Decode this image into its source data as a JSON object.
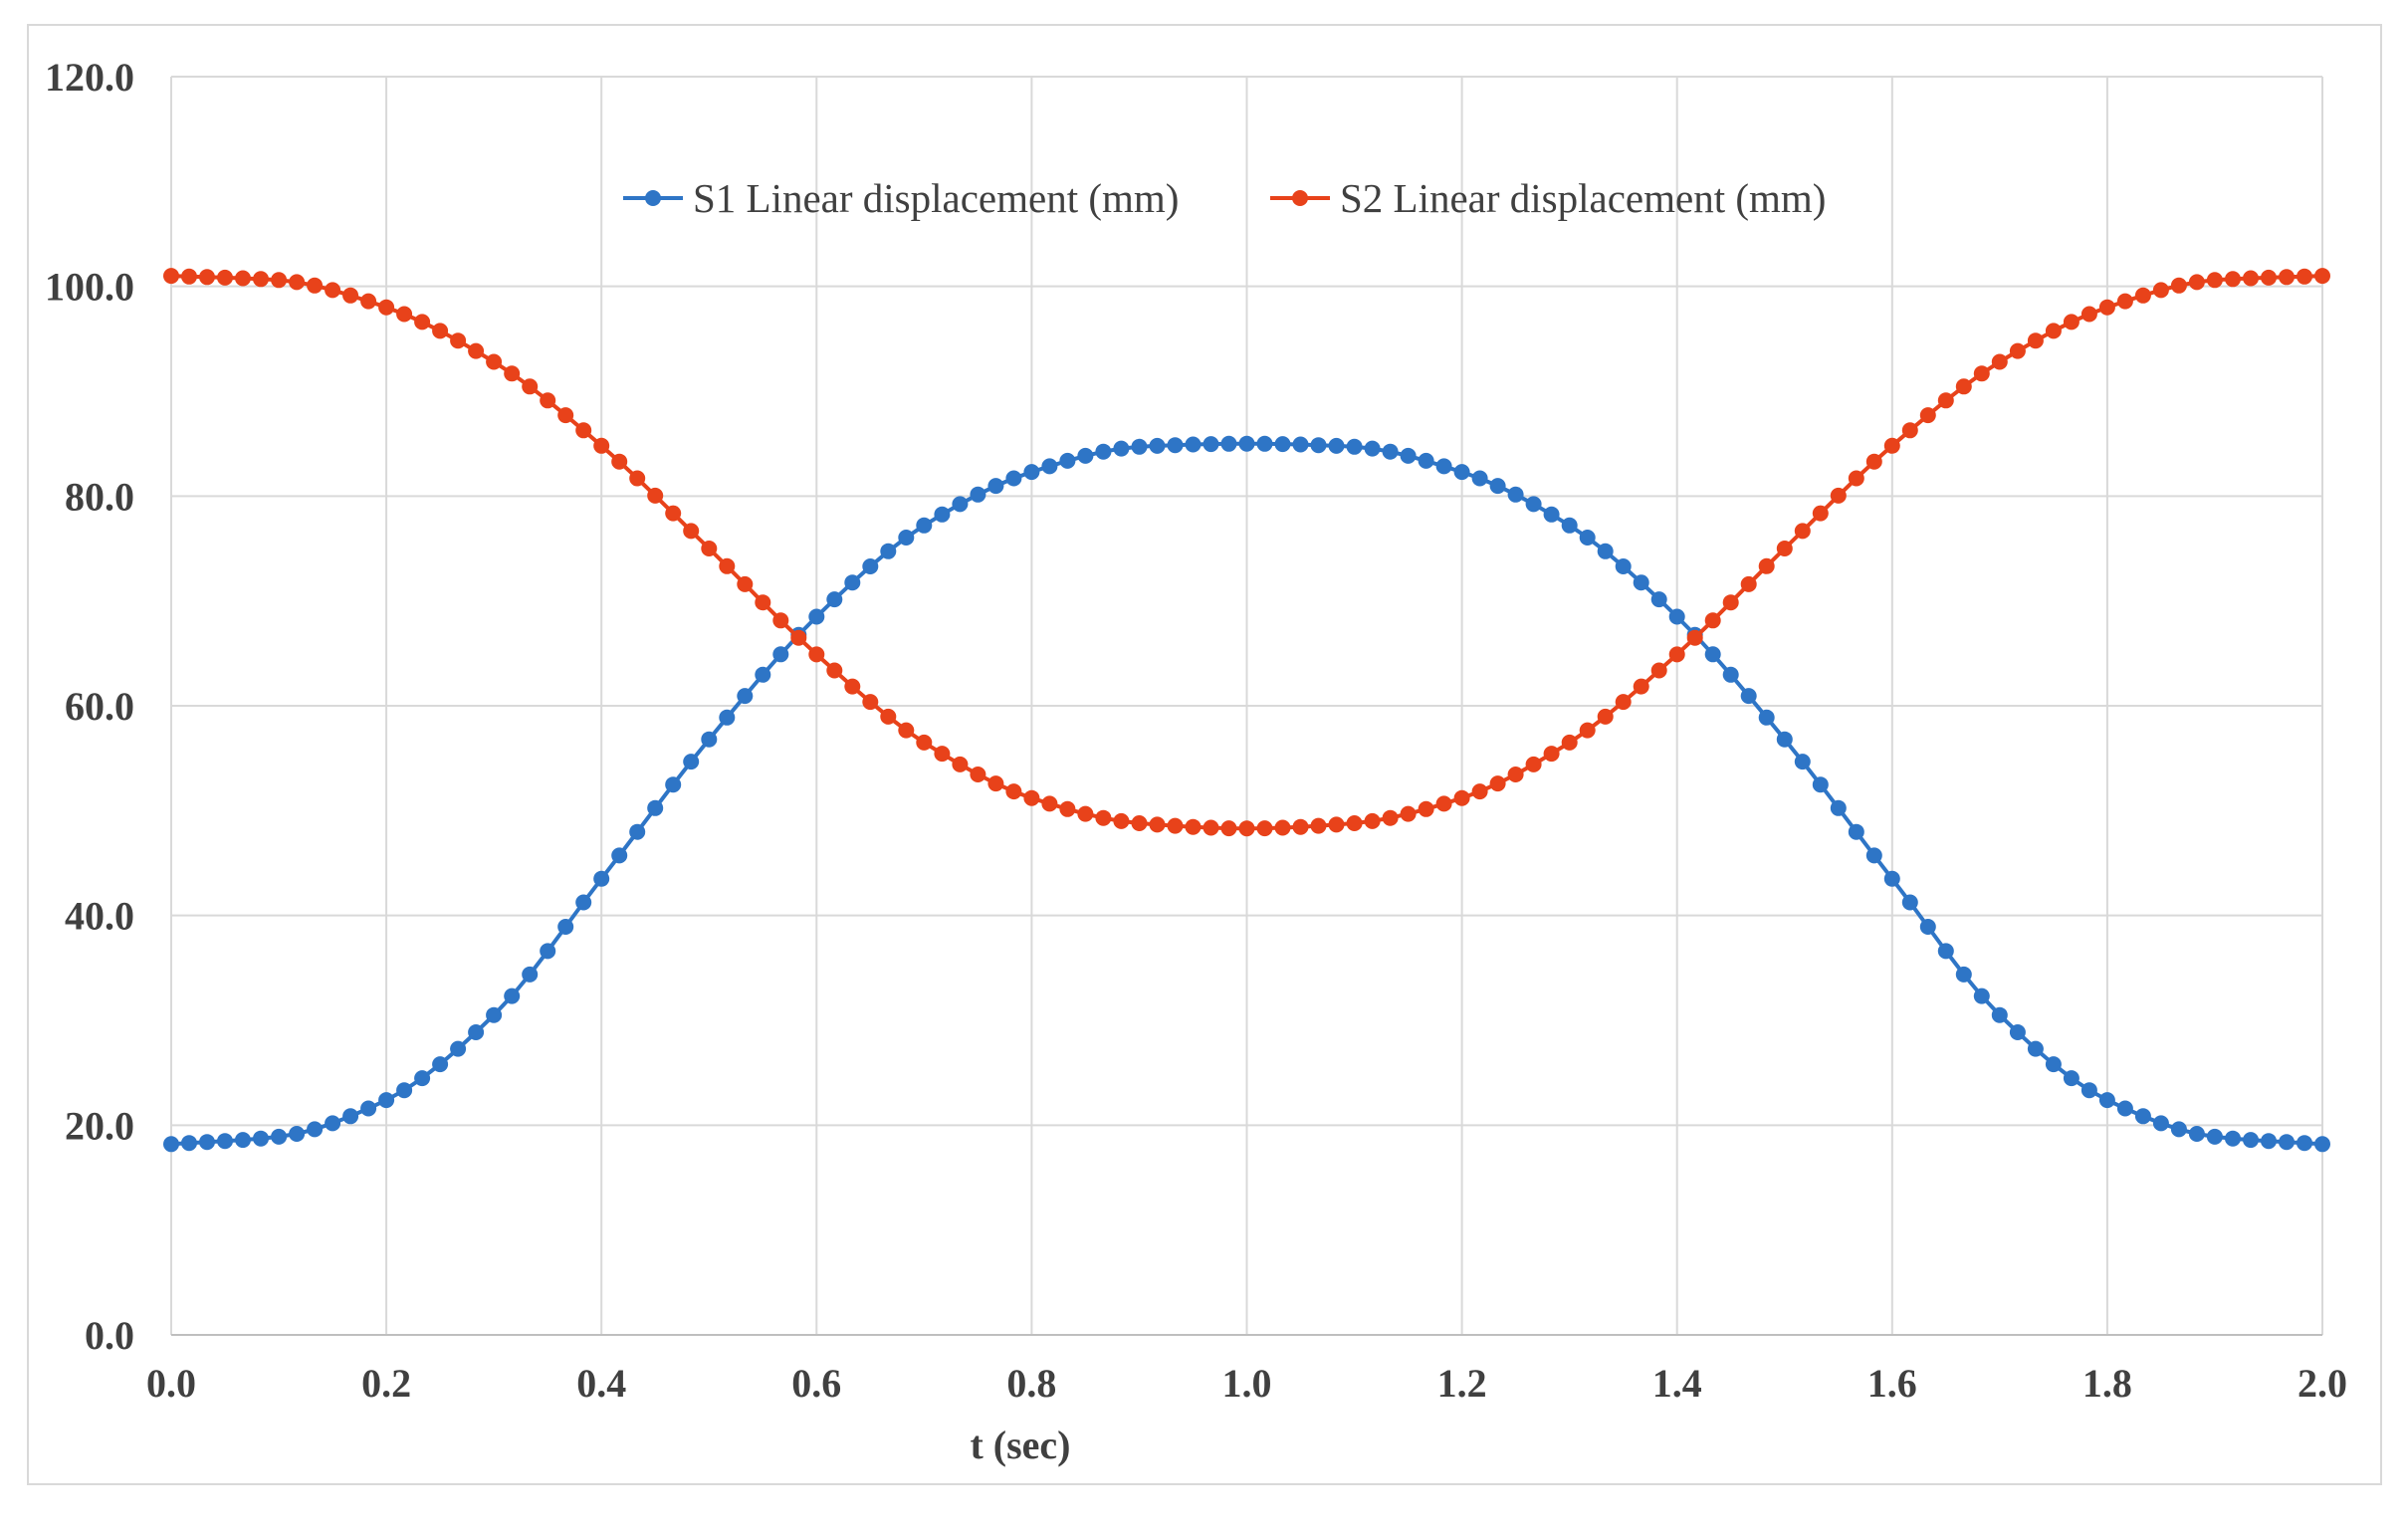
{
  "chart_data": {
    "type": "line",
    "title": "",
    "xlabel": "t (sec)",
    "ylabel": "",
    "xlim": [
      0.0,
      2.0
    ],
    "ylim": [
      0.0,
      120.0
    ],
    "x_ticks": [
      "0.0",
      "0.2",
      "0.4",
      "0.6",
      "0.8",
      "1.0",
      "1.2",
      "1.4",
      "1.6",
      "1.8",
      "2.0"
    ],
    "y_ticks": [
      "0.0",
      "20.0",
      "40.0",
      "60.0",
      "80.0",
      "100.0",
      "120.0"
    ],
    "grid": true,
    "legend_position": "top-center",
    "markers": "circle",
    "series": [
      {
        "name": "S1 Linear displacement (mm)",
        "color": "#2e75c6",
        "x": [
          0.0,
          0.1,
          0.2,
          0.3,
          0.4,
          0.5,
          0.6,
          0.7,
          0.8,
          0.9,
          1.0,
          1.1,
          1.2,
          1.3,
          1.4,
          1.5,
          1.6,
          1.7,
          1.8,
          1.9,
          2.0
        ],
        "values": [
          18.2,
          18.9,
          22.4,
          30.5,
          43.5,
          56.8,
          68.5,
          77.2,
          82.3,
          84.7,
          85.0,
          84.7,
          82.3,
          77.2,
          68.5,
          56.8,
          43.5,
          30.5,
          22.4,
          18.9,
          18.2
        ]
      },
      {
        "name": "S2 Linear displacement (mm)",
        "color": "#e8421a",
        "x": [
          0.0,
          0.1,
          0.2,
          0.3,
          0.4,
          0.5,
          0.6,
          0.7,
          0.8,
          0.9,
          1.0,
          1.1,
          1.2,
          1.3,
          1.4,
          1.5,
          1.6,
          1.7,
          1.8,
          1.9,
          2.0
        ],
        "values": [
          101.0,
          100.6,
          98.0,
          92.8,
          84.8,
          75.0,
          64.9,
          56.5,
          51.2,
          48.8,
          48.3,
          48.8,
          51.2,
          56.5,
          64.9,
          75.0,
          84.8,
          92.8,
          98.0,
          100.6,
          101.0
        ]
      }
    ]
  }
}
